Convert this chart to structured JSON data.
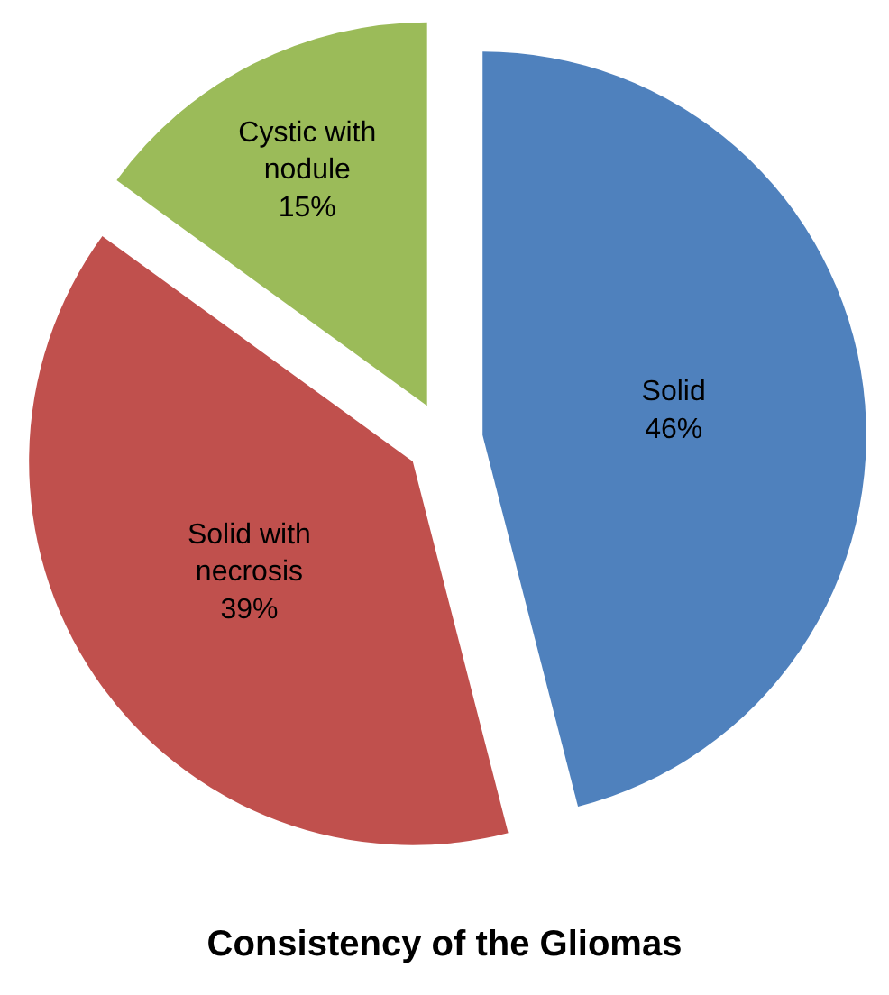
{
  "chart_data": {
    "type": "pie",
    "title": "Consistency of the Gliomas",
    "categories": [
      "Solid",
      "Solid with necrosis",
      "Cystic with nodule"
    ],
    "values": [
      46,
      39,
      15
    ],
    "value_labels": [
      "46%",
      "39%",
      "15%"
    ],
    "colors": [
      "#4f81bd",
      "#c0504d",
      "#9bbb59"
    ],
    "legend": false
  }
}
